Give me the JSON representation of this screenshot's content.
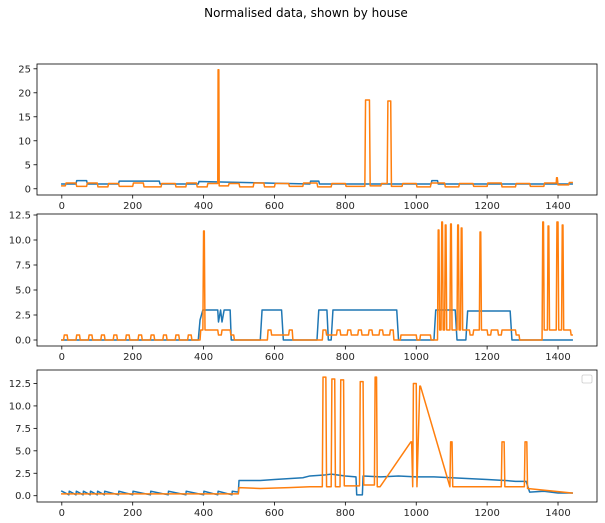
{
  "figure": {
    "title": "Normalised data, shown by house"
  },
  "chart_data": [
    {
      "type": "line",
      "xlim": [
        -70,
        1510
      ],
      "ylim": [
        -1.3,
        26
      ],
      "xticks": [
        0,
        200,
        400,
        600,
        800,
        1000,
        1200,
        1400
      ],
      "yticks": [
        0,
        5,
        10,
        15,
        20,
        25
      ],
      "ytick_labels": [
        "0",
        "5",
        "10",
        "15",
        "20",
        "25"
      ],
      "colors": [
        "#1f77b4",
        "#ff7f0e"
      ],
      "legend": false,
      "series": [
        {
          "x": [
            0,
            40,
            42,
            70,
            72,
            160,
            162,
            275,
            277,
            385,
            387,
            700,
            702,
            725,
            727,
            800,
            1000,
            1042,
            1044,
            1060,
            1062,
            1440
          ],
          "y": [
            1.0,
            1.0,
            1.7,
            1.7,
            1.0,
            1.0,
            1.6,
            1.6,
            1.0,
            1.0,
            1.5,
            1.0,
            1.6,
            1.6,
            1.0,
            1.0,
            1.0,
            1.0,
            1.7,
            1.7,
            1.0,
            1.0
          ]
        },
        {
          "x": [
            0,
            10,
            12,
            40,
            42,
            70,
            72,
            100,
            102,
            130,
            132,
            160,
            162,
            200,
            202,
            230,
            232,
            280,
            282,
            320,
            322,
            350,
            352,
            380,
            382,
            410,
            412,
            440,
            441,
            443,
            444,
            470,
            472,
            500,
            502,
            540,
            542,
            570,
            572,
            600,
            602,
            640,
            642,
            680,
            682,
            720,
            722,
            760,
            762,
            800,
            802,
            855,
            857,
            868,
            870,
            900,
            902,
            918,
            920,
            928,
            930,
            960,
            962,
            1000,
            1002,
            1040,
            1042,
            1080,
            1082,
            1120,
            1122,
            1160,
            1162,
            1200,
            1202,
            1240,
            1242,
            1280,
            1282,
            1320,
            1322,
            1360,
            1362,
            1395,
            1396,
            1398,
            1400,
            1430,
            1432,
            1440
          ],
          "y": [
            0.6,
            0.6,
            1.2,
            1.2,
            0.5,
            0.5,
            1.2,
            1.2,
            0.4,
            0.4,
            1.1,
            1.1,
            0.5,
            0.5,
            1.2,
            1.2,
            0.4,
            0.4,
            1.1,
            1.1,
            0.4,
            0.4,
            1.2,
            1.2,
            0.4,
            0.4,
            1.1,
            1.1,
            24.8,
            24.8,
            0.6,
            0.6,
            1.1,
            1.1,
            0.4,
            0.4,
            1.2,
            1.2,
            0.4,
            0.4,
            1.1,
            1.1,
            0.5,
            0.5,
            1.2,
            1.2,
            0.4,
            0.4,
            1.1,
            1.1,
            0.5,
            0.5,
            18.5,
            18.5,
            0.6,
            0.6,
            1.1,
            1.1,
            18.3,
            18.3,
            0.5,
            0.5,
            1.1,
            1.1,
            0.4,
            0.4,
            1.2,
            1.2,
            0.4,
            0.4,
            1.1,
            1.1,
            0.5,
            0.5,
            1.2,
            1.2,
            0.4,
            0.4,
            1.1,
            1.1,
            0.5,
            0.5,
            1.2,
            1.2,
            2.3,
            2.3,
            0.8,
            0.8,
            1.3,
            1.3
          ]
        }
      ]
    },
    {
      "type": "line",
      "xlim": [
        -70,
        1510
      ],
      "ylim": [
        -0.6,
        12.6
      ],
      "xticks": [
        0,
        200,
        400,
        600,
        800,
        1000,
        1200,
        1400
      ],
      "yticks": [
        0,
        2.5,
        5,
        7.5,
        10,
        12.5
      ],
      "ytick_labels": [
        "0.0",
        "2.5",
        "5.0",
        "7.5",
        "10.0",
        "12.5"
      ],
      "colors": [
        "#1f77b4",
        "#ff7f0e"
      ],
      "legend": false,
      "series": [
        {
          "x": [
            0,
            385,
            390,
            398,
            440,
            442,
            448,
            452,
            458,
            475,
            478,
            560,
            565,
            620,
            625,
            720,
            725,
            748,
            752,
            760,
            765,
            945,
            950,
            1050,
            1055,
            1110,
            1115,
            1140,
            1145,
            1265,
            1270,
            1440
          ],
          "y": [
            0.0,
            0.0,
            2.0,
            3.0,
            3.0,
            1.8,
            3.0,
            1.8,
            3.0,
            3.0,
            0.0,
            0.0,
            3.0,
            3.0,
            0.0,
            0.0,
            3.0,
            3.0,
            0.0,
            0.0,
            3.0,
            3.0,
            0.0,
            0.0,
            3.0,
            3.0,
            0.0,
            0.0,
            2.9,
            2.9,
            0.0,
            0.0
          ]
        },
        {
          "x": [
            0,
            5,
            7,
            15,
            17,
            40,
            42,
            50,
            52,
            75,
            77,
            85,
            87,
            110,
            112,
            120,
            122,
            145,
            147,
            155,
            157,
            180,
            182,
            190,
            192,
            215,
            217,
            225,
            227,
            250,
            252,
            260,
            262,
            285,
            287,
            295,
            297,
            320,
            322,
            330,
            332,
            355,
            357,
            365,
            367,
            390,
            392,
            398,
            400,
            402,
            404,
            408,
            410,
            440,
            442,
            450,
            452,
            475,
            477,
            485,
            487,
            580,
            582,
            590,
            592,
            640,
            642,
            650,
            652,
            735,
            737,
            745,
            747,
            775,
            777,
            785,
            787,
            805,
            807,
            815,
            817,
            835,
            837,
            845,
            847,
            865,
            867,
            875,
            877,
            895,
            897,
            905,
            907,
            925,
            927,
            935,
            937,
            955,
            957,
            1000,
            1002,
            1010,
            1012,
            1040,
            1042,
            1060,
            1062,
            1064,
            1066,
            1070,
            1072,
            1074,
            1076,
            1080,
            1082,
            1084,
            1086,
            1095,
            1097,
            1099,
            1101,
            1115,
            1117,
            1119,
            1121,
            1125,
            1127,
            1129,
            1131,
            1150,
            1152,
            1160,
            1162,
            1178,
            1180,
            1182,
            1184,
            1200,
            1202,
            1210,
            1212,
            1230,
            1232,
            1240,
            1242,
            1280,
            1282,
            1290,
            1292,
            1355,
            1357,
            1359,
            1361,
            1370,
            1372,
            1374,
            1376,
            1395,
            1397,
            1400,
            1402,
            1410,
            1412,
            1414,
            1416,
            1435,
            1437,
            1440
          ],
          "y": [
            0.0,
            0.0,
            0.5,
            0.5,
            0.0,
            0.0,
            0.5,
            0.5,
            0.0,
            0.0,
            0.5,
            0.5,
            0.0,
            0.0,
            0.5,
            0.5,
            0.0,
            0.0,
            0.5,
            0.5,
            0.0,
            0.0,
            0.5,
            0.5,
            0.0,
            0.0,
            0.5,
            0.5,
            0.0,
            0.0,
            0.5,
            0.5,
            0.0,
            0.0,
            0.5,
            0.5,
            0.0,
            0.0,
            0.5,
            0.5,
            0.0,
            0.0,
            0.5,
            0.5,
            0.0,
            0.0,
            1.0,
            1.0,
            10.9,
            10.9,
            1.0,
            1.0,
            1.0,
            1.0,
            0.5,
            0.5,
            1.0,
            1.0,
            0.5,
            0.5,
            0.0,
            0.0,
            1.0,
            1.0,
            0.5,
            0.5,
            1.0,
            1.0,
            0.0,
            0.0,
            1.0,
            1.0,
            0.5,
            0.5,
            1.0,
            1.0,
            0.5,
            0.5,
            1.0,
            1.0,
            0.5,
            0.5,
            1.0,
            1.0,
            0.5,
            0.5,
            1.0,
            1.0,
            0.5,
            0.5,
            1.0,
            1.0,
            0.5,
            0.5,
            1.0,
            1.0,
            0.0,
            0.0,
            0.5,
            0.5,
            0.0,
            0.0,
            0.5,
            0.5,
            0.0,
            0.0,
            11.0,
            11.0,
            1.0,
            1.0,
            11.8,
            11.8,
            1.0,
            1.0,
            11.5,
            11.5,
            1.0,
            1.0,
            11.6,
            11.6,
            1.0,
            1.0,
            11.5,
            11.5,
            1.0,
            1.0,
            11.2,
            11.2,
            1.0,
            1.0,
            0.5,
            0.5,
            1.0,
            1.0,
            10.8,
            10.8,
            1.0,
            1.0,
            0.5,
            0.5,
            1.0,
            1.0,
            0.5,
            0.5,
            1.0,
            1.0,
            0.5,
            0.5,
            0.0,
            0.0,
            11.8,
            11.8,
            1.0,
            1.0,
            11.4,
            11.4,
            1.0,
            1.0,
            11.8,
            11.8,
            1.0,
            1.0,
            11.5,
            11.5,
            1.0,
            1.0,
            0.5,
            0.5
          ]
        }
      ]
    },
    {
      "type": "line",
      "xlim": [
        -70,
        1510
      ],
      "ylim": [
        -0.7,
        14.0
      ],
      "xticks": [
        0,
        200,
        400,
        600,
        800,
        1000,
        1200,
        1400
      ],
      "yticks": [
        0,
        2.5,
        5,
        7.5,
        10,
        12.5
      ],
      "ytick_labels": [
        "0.0",
        "2.5",
        "5.0",
        "7.5",
        "10.0",
        "12.5"
      ],
      "colors": [
        "#1f77b4",
        "#ff7f0e"
      ],
      "legend": true,
      "legend_position": "top-right",
      "series": [
        {
          "x": [
            0,
            20,
            21,
            40,
            41,
            60,
            61,
            80,
            81,
            100,
            101,
            120,
            121,
            160,
            161,
            200,
            201,
            250,
            251,
            300,
            301,
            350,
            351,
            400,
            401,
            440,
            441,
            480,
            481,
            498,
            500,
            560,
            600,
            640,
            680,
            700,
            740,
            760,
            800,
            830,
            832,
            848,
            850,
            900,
            950,
            1000,
            1050,
            1100,
            1150,
            1200,
            1250,
            1280,
            1310,
            1320,
            1360,
            1400,
            1440
          ],
          "y": [
            0.5,
            0.1,
            0.5,
            0.1,
            0.5,
            0.1,
            0.5,
            0.1,
            0.5,
            0.1,
            0.5,
            0.1,
            0.5,
            0.1,
            0.5,
            0.1,
            0.5,
            0.1,
            0.5,
            0.1,
            0.5,
            0.1,
            0.5,
            0.1,
            0.5,
            0.1,
            0.5,
            0.1,
            0.5,
            0.4,
            1.7,
            1.7,
            1.8,
            1.9,
            2.0,
            2.2,
            2.3,
            2.4,
            2.2,
            2.1,
            0.1,
            0.1,
            2.2,
            2.1,
            2.2,
            2.1,
            2.1,
            2.0,
            1.9,
            1.8,
            1.7,
            1.6,
            1.6,
            0.4,
            0.5,
            0.3,
            0.3
          ]
        },
        {
          "x": [
            0,
            498,
            500,
            560,
            640,
            700,
            735,
            737,
            745,
            747,
            760,
            762,
            770,
            772,
            785,
            787,
            795,
            797,
            840,
            842,
            850,
            852,
            882,
            884,
            888,
            890,
            896,
            898,
            985,
            987,
            990,
            992,
            1000,
            1002,
            1010,
            1012,
            1095,
            1097,
            1101,
            1103,
            1240,
            1242,
            1248,
            1250,
            1305,
            1307,
            1312,
            1314,
            1440
          ],
          "y": [
            0.2,
            0.2,
            0.9,
            0.8,
            0.9,
            1.0,
            1.0,
            13.2,
            13.2,
            1.0,
            1.0,
            13.0,
            13.0,
            1.0,
            1.0,
            12.9,
            12.9,
            1.1,
            1.1,
            12.7,
            12.7,
            1.2,
            1.2,
            13.2,
            13.2,
            1.0,
            1.0,
            1.0,
            6.0,
            6.0,
            1.0,
            12.5,
            12.5,
            1.0,
            12.2,
            12.2,
            1.0,
            6.0,
            6.0,
            1.0,
            1.0,
            6.0,
            6.0,
            1.0,
            1.0,
            6.0,
            6.0,
            0.8,
            0.3
          ]
        }
      ]
    }
  ]
}
